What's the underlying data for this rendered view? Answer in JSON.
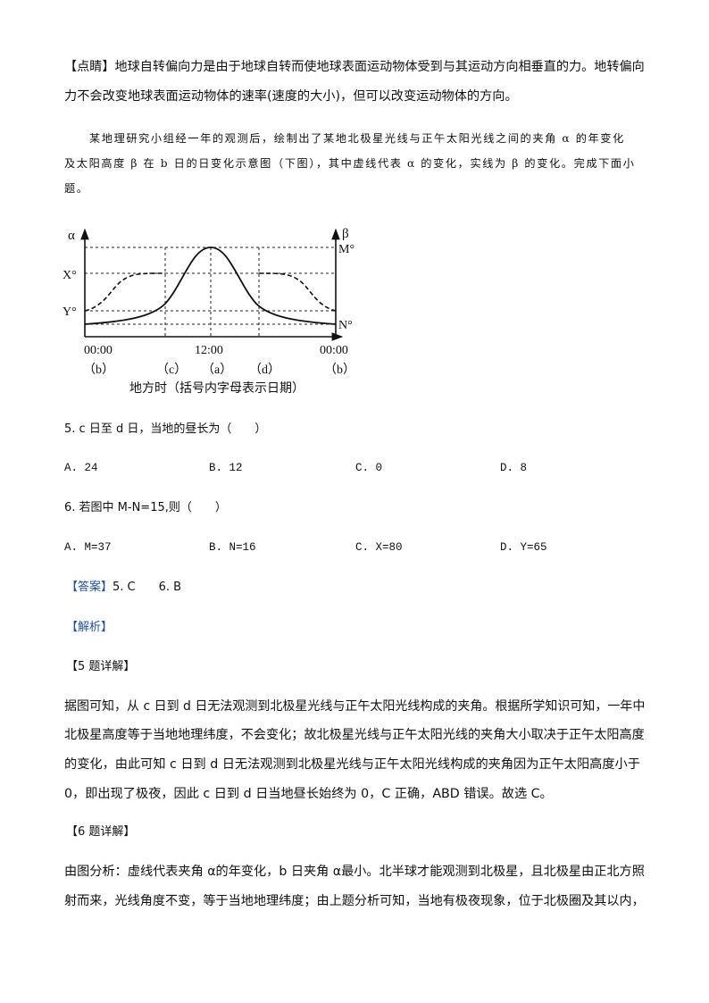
{
  "tip": {
    "label": "【点睛】",
    "line1": "地球自转偏向力是由于地球自转而使地球表面运动物体受到与其运动方向相垂直的力。地转偏向",
    "line2": "力不会改变地球表面运动物体的速率(速度的大小)，但可以改变运动物体的方向。"
  },
  "intro": {
    "line1": "某地理研究小组经一年的观测后，绘制出了某地北极星光线与正午太阳光线之间的夹角 α 的年变化",
    "line2": "及太阳高度 β 在 b 日的日变化示意图（下图），其中虚线代表 α 的变化，实线为 β 的变化。完成下面小",
    "line3": "题。"
  },
  "figure": {
    "left_axis": "α",
    "right_axis": "β",
    "left_ticks": [
      "X°",
      "Y°"
    ],
    "right_ticks": [
      "M°",
      "N°"
    ],
    "time_labels": [
      "00:00",
      "12:00",
      "00:00"
    ],
    "date_labels": [
      "（b）",
      "（c）",
      "（a）",
      "（d）",
      "（b）"
    ],
    "caption": "地方时（括号内字母表示日期）",
    "legend_note": {
      "dashed": "α",
      "solid": "β"
    }
  },
  "q5": {
    "stem": "5. c 日至 d 日，当地的昼长为（　　）",
    "options": [
      "A. 24",
      "B. 12",
      "C. 0",
      "D. 8"
    ]
  },
  "q6": {
    "stem": "6. 若图中 M-N=15,则（　　）",
    "options": [
      "A. M=37",
      "B. N=16",
      "C. X=80",
      "D. Y=65"
    ]
  },
  "answer": {
    "label": "【答案】",
    "text": "5. C　　6. B"
  },
  "analysis": {
    "label": "【解析】"
  },
  "detail5": {
    "label": "【5 题详解】",
    "lines": [
      "据图可知，从 c 日到 d 日无法观测到北极星光线与正午太阳光线构成的夹角。根据所学知识可知，一年中",
      "北极星高度等于当地地理纬度，不会变化；故北极星光线与正午太阳光线的夹角大小取决于正午太阳高度",
      "的变化，由此可知 c 日到 d 日无法观测到北极星光线与正午太阳光线构成的夹角因为正午太阳高度小于",
      "0，即出现了极夜，因此 c 日到 d 日当地昼长始终为 0，C 正确，ABD 错误。故选 C。"
    ]
  },
  "detail6": {
    "label": "【6 题详解】",
    "lines": [
      "由图分析：虚线代表夹角 α的年变化，b 日夹角 α最小。北半球才能观测到北极星，且北极星由正北方照",
      "射而来，光线角度不变，等于当地地理纬度；由上题分析可知，当地有极夜现象，位于北极圈及其以内，"
    ]
  }
}
